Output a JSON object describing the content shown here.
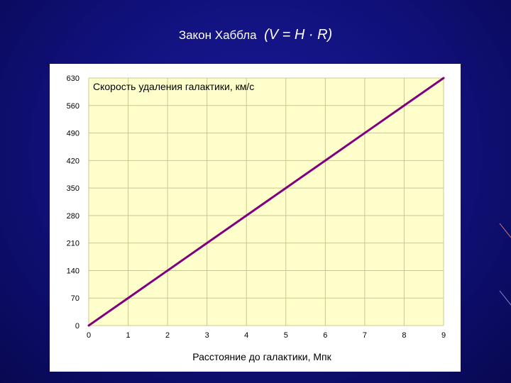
{
  "slide": {
    "title": "Закон Хаббла",
    "formula": "(V = H · R)"
  },
  "colors": {
    "background": "#12128a",
    "plot_area": "#ffffcc",
    "gridline": "#c8c890",
    "line": "#800080"
  },
  "chart_data": {
    "type": "line",
    "title": "",
    "xlabel": "Расстояние до галактики, Мпк",
    "ylabel": "Скорость удаления галактики, км/с",
    "xlim": [
      0,
      9
    ],
    "ylim": [
      0,
      630
    ],
    "x_ticks": [
      0,
      1,
      2,
      3,
      4,
      5,
      6,
      7,
      8,
      9
    ],
    "y_ticks": [
      0,
      70,
      140,
      210,
      280,
      350,
      420,
      490,
      560,
      630
    ],
    "grid": true,
    "legend": "none",
    "series": [
      {
        "x": [
          0,
          1,
          2,
          3,
          4,
          5,
          6,
          7,
          8,
          9
        ],
        "y": [
          0,
          70,
          140,
          210,
          280,
          350,
          420,
          490,
          560,
          630
        ]
      }
    ]
  }
}
